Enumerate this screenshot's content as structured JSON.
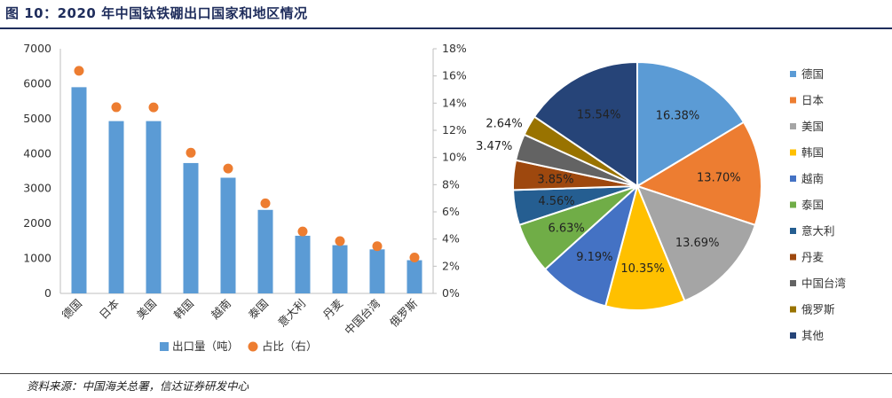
{
  "title": "图 10：2020 年中国钛铁硼出口国家和地区情况",
  "source": "资料来源：中国海关总署，信达证券研发中心",
  "chart_data": [
    {
      "type": "bar",
      "categories": [
        "德国",
        "日本",
        "美国",
        "韩国",
        "越南",
        "泰国",
        "意大利",
        "丹麦",
        "中国台湾",
        "俄罗斯"
      ],
      "series": [
        {
          "name": "出口量（吨）",
          "axis": "left",
          "kind": "bar",
          "color": "#5b9bd5",
          "values": [
            5900,
            4930,
            4930,
            3730,
            3310,
            2390,
            1650,
            1380,
            1260,
            950
          ]
        },
        {
          "name": "占比（右）",
          "axis": "right",
          "kind": "scatter",
          "color": "#ed7d31",
          "values": [
            16.38,
            13.7,
            13.69,
            10.35,
            9.19,
            6.63,
            4.56,
            3.85,
            3.47,
            2.64
          ]
        }
      ],
      "left_axis": {
        "min": 0,
        "max": 7000,
        "ticks": [
          "0",
          "1000",
          "2000",
          "3000",
          "4000",
          "5000",
          "6000",
          "7000"
        ]
      },
      "right_axis": {
        "min": 0,
        "max": 18,
        "ticks": [
          "0%",
          "2%",
          "4%",
          "6%",
          "8%",
          "10%",
          "12%",
          "14%",
          "16%",
          "18%"
        ]
      },
      "legend_position": "bottom",
      "grid": false
    },
    {
      "type": "pie",
      "labels": [
        "德国",
        "日本",
        "美国",
        "韩国",
        "越南",
        "泰国",
        "意大利",
        "丹麦",
        "中国台湾",
        "俄罗斯",
        "其他"
      ],
      "values": [
        16.38,
        13.7,
        13.69,
        10.35,
        9.19,
        6.63,
        4.56,
        3.85,
        3.47,
        2.64,
        15.54
      ],
      "value_labels": [
        "16.38%",
        "13.70%",
        "13.69%",
        "10.35%",
        "9.19%",
        "6.63%",
        "4.56%",
        "3.85%",
        "3.47%",
        "2.64%",
        "15.54%"
      ],
      "colors": [
        "#5b9bd5",
        "#ed7d31",
        "#a5a5a5",
        "#ffc000",
        "#4472c4",
        "#70ad47",
        "#255e91",
        "#9e480e",
        "#636363",
        "#997300",
        "#264478"
      ],
      "legend_position": "right"
    }
  ]
}
